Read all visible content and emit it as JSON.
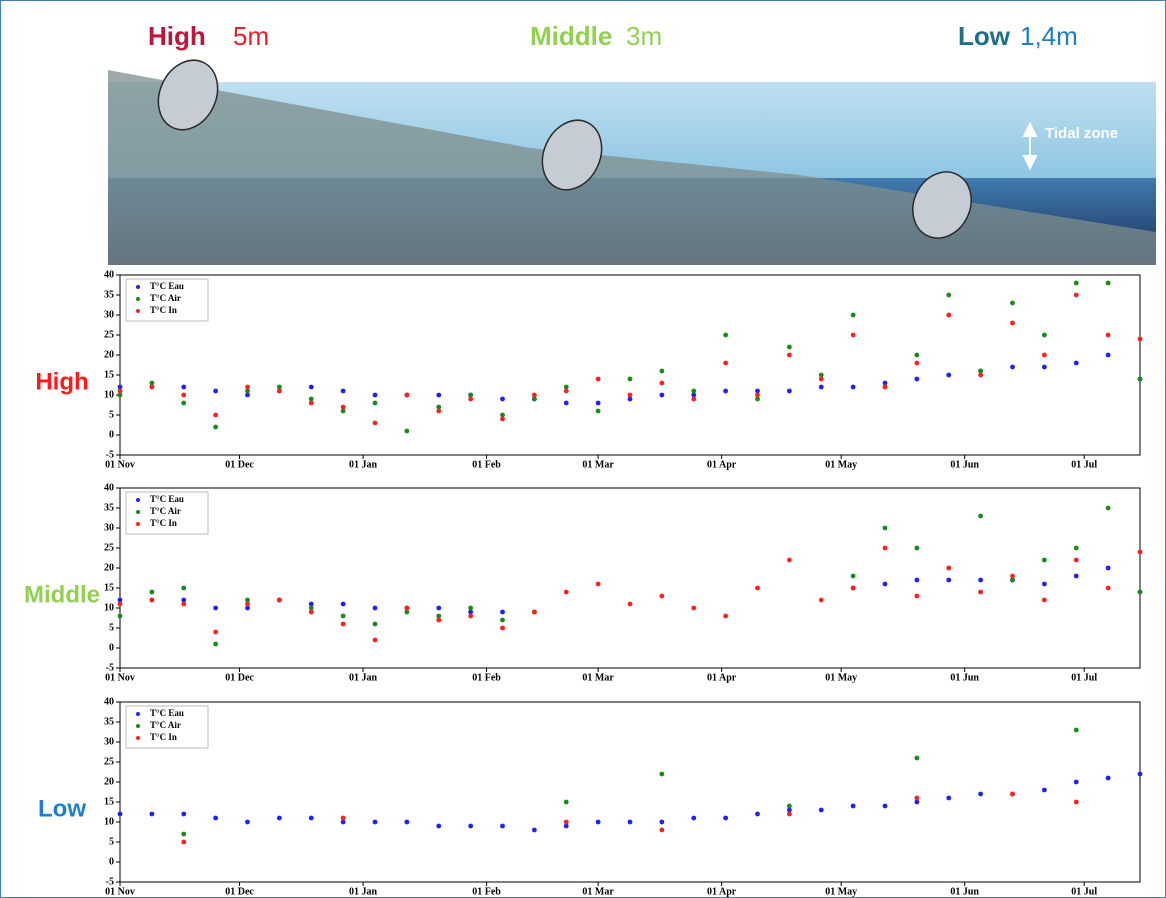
{
  "header": {
    "sites": [
      {
        "name": "High",
        "depth": "5m",
        "name_color": "#c0143c",
        "depth_color": "#e8202a"
      },
      {
        "name": "Middle",
        "depth": "3m",
        "name_color": "#92d050",
        "depth_color": "#92d050"
      },
      {
        "name": "Low",
        "depth": "1,4m",
        "name_color": "#1f6f8b",
        "depth_color": "#1c7fc4"
      }
    ],
    "tidal_zone": "Tidal zone"
  },
  "chart_data": [
    {
      "type": "scatter",
      "label": "High",
      "label_color": "#ff1a1a",
      "x": [
        0,
        8,
        16,
        24,
        32,
        40,
        48,
        56,
        64,
        72,
        80,
        88,
        96,
        104,
        112,
        120,
        128,
        136,
        144,
        152,
        160,
        168,
        176,
        184,
        192,
        200,
        208,
        216,
        224,
        232,
        240,
        248,
        256
      ],
      "xlim": [
        0,
        256
      ],
      "xticks": [
        {
          "value": 0,
          "label": "01 Nov"
        },
        {
          "value": 30,
          "label": "01 Dec"
        },
        {
          "value": 61,
          "label": "01 Jan"
        },
        {
          "value": 92,
          "label": "01 Feb"
        },
        {
          "value": 120,
          "label": "01 Mar"
        },
        {
          "value": 151,
          "label": "01 Apr"
        },
        {
          "value": 181,
          "label": "01 May"
        },
        {
          "value": 212,
          "label": "01 Jun"
        },
        {
          "value": 242,
          "label": "01 Jul"
        }
      ],
      "ylim": [
        -5,
        40
      ],
      "yticks": [
        -5,
        0,
        5,
        10,
        15,
        20,
        25,
        30,
        35,
        40
      ],
      "series": [
        {
          "name": "T°C Eau",
          "color": "#2020ff",
          "values": [
            12,
            12,
            12,
            11,
            10,
            11,
            12,
            11,
            10,
            10,
            10,
            10,
            9,
            9,
            8,
            8,
            9,
            10,
            10,
            11,
            11,
            11,
            12,
            12,
            13,
            14,
            15,
            16,
            17,
            17,
            18,
            20,
            14
          ]
        },
        {
          "name": "T°C Air",
          "color": "#1a8a1a",
          "values": [
            10,
            13,
            8,
            2,
            11,
            12,
            9,
            6,
            8,
            1,
            7,
            10,
            5,
            9,
            12,
            6,
            14,
            16,
            11,
            25,
            9,
            22,
            15,
            30,
            12,
            20,
            35,
            16,
            33,
            25,
            38,
            38,
            14
          ]
        },
        {
          "name": "T°C In",
          "color": "#ff2020",
          "values": [
            11,
            12,
            10,
            5,
            12,
            11,
            8,
            7,
            3,
            10,
            6,
            9,
            4,
            10,
            11,
            14,
            10,
            13,
            9,
            18,
            10,
            20,
            14,
            25,
            12,
            18,
            30,
            15,
            28,
            20,
            35,
            25,
            24
          ]
        }
      ]
    },
    {
      "type": "scatter",
      "label": "Middle",
      "label_color": "#92d050",
      "x": [
        0,
        8,
        16,
        24,
        32,
        40,
        48,
        56,
        64,
        72,
        80,
        88,
        96,
        104,
        112,
        120,
        128,
        136,
        144,
        152,
        160,
        168,
        176,
        184,
        192,
        200,
        208,
        216,
        224,
        232,
        240,
        248,
        256
      ],
      "xlim": [
        0,
        256
      ],
      "xticks": [
        {
          "value": 0,
          "label": "01 Nov"
        },
        {
          "value": 30,
          "label": "01 Dec"
        },
        {
          "value": 61,
          "label": "01 Jan"
        },
        {
          "value": 92,
          "label": "01 Feb"
        },
        {
          "value": 120,
          "label": "01 Mar"
        },
        {
          "value": 151,
          "label": "01 Apr"
        },
        {
          "value": 181,
          "label": "01 May"
        },
        {
          "value": 212,
          "label": "01 Jun"
        },
        {
          "value": 242,
          "label": "01 Jul"
        }
      ],
      "ylim": [
        -5,
        40
      ],
      "yticks": [
        -5,
        0,
        5,
        10,
        15,
        20,
        25,
        30,
        35,
        40
      ],
      "series": [
        {
          "name": "T°C Eau",
          "color": "#2020ff",
          "values": [
            12,
            12,
            12,
            10,
            10,
            12,
            11,
            11,
            10,
            10,
            10,
            9,
            9,
            9,
            null,
            null,
            null,
            null,
            null,
            null,
            null,
            null,
            null,
            15,
            16,
            17,
            17,
            17,
            17,
            16,
            18,
            20,
            14
          ]
        },
        {
          "name": "T°C Air",
          "color": "#1a8a1a",
          "values": [
            8,
            14,
            15,
            1,
            12,
            12,
            10,
            8,
            6,
            9,
            8,
            10,
            7,
            9,
            null,
            null,
            null,
            null,
            null,
            null,
            null,
            null,
            null,
            18,
            30,
            25,
            20,
            33,
            17,
            22,
            25,
            35,
            14
          ]
        },
        {
          "name": "T°C In",
          "color": "#ff2020",
          "values": [
            11,
            12,
            11,
            4,
            11,
            12,
            9,
            6,
            2,
            10,
            7,
            8,
            5,
            9,
            14,
            16,
            11,
            13,
            10,
            8,
            15,
            22,
            12,
            15,
            25,
            13,
            20,
            14,
            18,
            12,
            22,
            15,
            24
          ]
        }
      ]
    },
    {
      "type": "scatter",
      "label": "Low",
      "label_color": "#1c7fd4",
      "x": [
        0,
        8,
        16,
        24,
        32,
        40,
        48,
        56,
        64,
        72,
        80,
        88,
        96,
        104,
        112,
        120,
        128,
        136,
        144,
        152,
        160,
        168,
        176,
        184,
        192,
        200,
        208,
        216,
        224,
        232,
        240,
        248,
        256
      ],
      "xlim": [
        0,
        256
      ],
      "xticks": [
        {
          "value": 0,
          "label": "01 Nov"
        },
        {
          "value": 30,
          "label": "01 Dec"
        },
        {
          "value": 61,
          "label": "01 Jan"
        },
        {
          "value": 92,
          "label": "01 Feb"
        },
        {
          "value": 120,
          "label": "01 Mar"
        },
        {
          "value": 151,
          "label": "01 Apr"
        },
        {
          "value": 181,
          "label": "01 May"
        },
        {
          "value": 212,
          "label": "01 Jun"
        },
        {
          "value": 242,
          "label": "01 Jul"
        }
      ],
      "ylim": [
        -5,
        40
      ],
      "yticks": [
        -5,
        0,
        5,
        10,
        15,
        20,
        25,
        30,
        35,
        40
      ],
      "series": [
        {
          "name": "T°C Eau",
          "color": "#2020ff",
          "values": [
            12,
            12,
            12,
            11,
            10,
            11,
            11,
            10,
            10,
            10,
            9,
            9,
            9,
            8,
            9,
            10,
            10,
            10,
            11,
            11,
            12,
            13,
            13,
            14,
            14,
            15,
            16,
            17,
            17,
            18,
            20,
            21,
            22
          ]
        },
        {
          "name": "T°C Air",
          "color": "#1a8a1a",
          "values": [
            null,
            null,
            7,
            null,
            null,
            null,
            null,
            null,
            null,
            null,
            null,
            null,
            null,
            null,
            15,
            null,
            null,
            22,
            null,
            null,
            null,
            14,
            null,
            null,
            null,
            26,
            null,
            null,
            null,
            null,
            33,
            null,
            null
          ]
        },
        {
          "name": "T°C In",
          "color": "#ff2020",
          "values": [
            null,
            null,
            5,
            null,
            null,
            null,
            null,
            11,
            null,
            null,
            null,
            null,
            null,
            null,
            10,
            null,
            null,
            8,
            null,
            null,
            null,
            12,
            null,
            null,
            null,
            16,
            null,
            null,
            17,
            null,
            15,
            null,
            null
          ]
        }
      ]
    }
  ]
}
